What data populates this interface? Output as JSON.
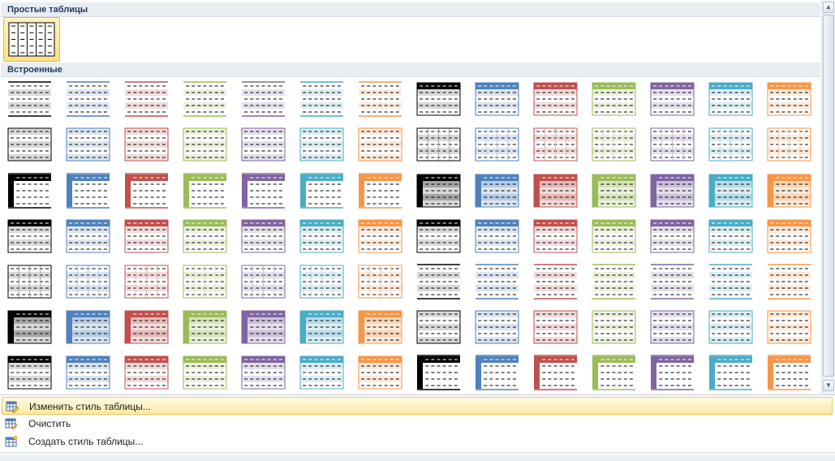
{
  "gallery": {
    "section_plain": "Простые таблицы",
    "section_builtin": "Встроенные",
    "colors": [
      "#000000",
      "#4f81bd",
      "#c0504d",
      "#9bbb59",
      "#8064a2",
      "#4bacc6",
      "#f79646"
    ],
    "light_colors": [
      "#d9d9d9",
      "#dbe5f1",
      "#f2dcdb",
      "#ebf1dd",
      "#e5e0ec",
      "#dbeef3",
      "#fdeada"
    ],
    "mid_colors": [
      "#a6a6a6",
      "#b8cce4",
      "#e6b8b7",
      "#d7e3bc",
      "#ccc0da",
      "#b7dde8",
      "#fbd5b5"
    ]
  },
  "menu": {
    "items": [
      {
        "label": "Изменить стиль таблицы...",
        "icon": "modify-table-style-icon"
      },
      {
        "label": "Очистить",
        "icon": "clear-table-icon"
      },
      {
        "label": "Создать стиль таблицы...",
        "icon": "new-table-style-icon"
      }
    ]
  }
}
